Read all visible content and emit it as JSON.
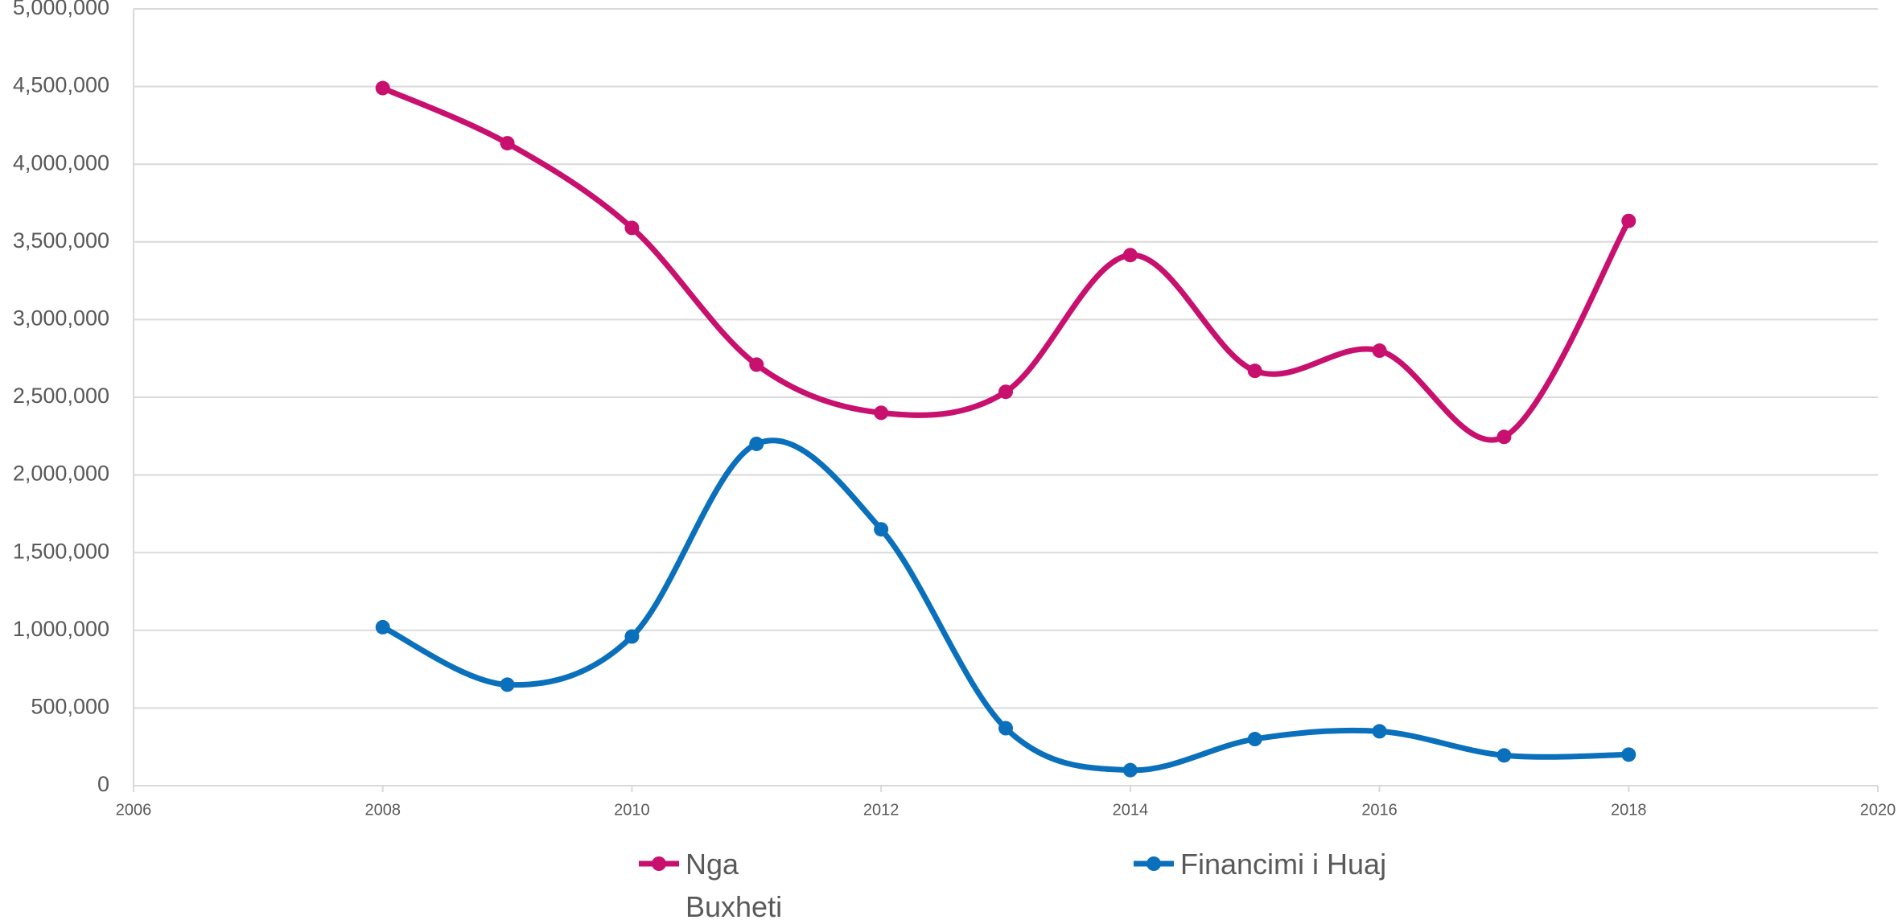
{
  "chart_data": {
    "type": "line",
    "x": [
      2008,
      2009,
      2010,
      2011,
      2012,
      2013,
      2014,
      2015,
      2016,
      2017,
      2018
    ],
    "series": [
      {
        "name": "Nga Buxheti",
        "color": "#c8106e",
        "values": [
          4490000,
          4135000,
          3590000,
          2710000,
          2400000,
          2535000,
          3415000,
          2670000,
          2800000,
          2245000,
          3635000
        ]
      },
      {
        "name": "Financimi i Huaj",
        "color": "#0a70bb",
        "values": [
          1020000,
          650000,
          960000,
          2200000,
          1650000,
          370000,
          100000,
          300000,
          350000,
          195000,
          200000
        ]
      }
    ],
    "xlim": [
      2006,
      2020
    ],
    "xticks": [
      2006,
      2008,
      2010,
      2012,
      2014,
      2016,
      2018,
      2020
    ],
    "ylim": [
      0,
      5000000
    ],
    "yticks": [
      0,
      {
        "value": 500000,
        "label": "500,000"
      },
      {
        "value": 1000000,
        "label": "1,000,000"
      },
      {
        "value": 1500000,
        "label": "1,500,000"
      },
      {
        "value": 2000000,
        "label": "2,000,000"
      },
      {
        "value": 2500000,
        "label": "2,500,000"
      },
      {
        "value": 3000000,
        "label": "3,000,000"
      },
      {
        "value": 3500000,
        "label": "3,500,000"
      },
      {
        "value": 4000000,
        "label": "4,000,000"
      },
      {
        "value": 4500000,
        "label": "4,500,000"
      },
      {
        "value": 5000000,
        "label": "5,000,000"
      }
    ],
    "grid": true,
    "smooth": true,
    "legend": "bottom"
  }
}
